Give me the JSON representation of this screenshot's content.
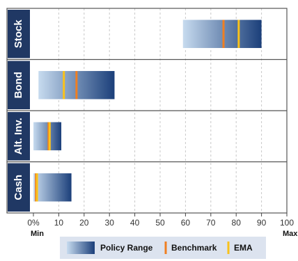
{
  "chart_data": {
    "type": "bar",
    "subtype": "horizontal floating range bars with markers",
    "categories": [
      "Stock",
      "Bond",
      "Alt. Inv.",
      "Cash"
    ],
    "ranges": [
      [
        59,
        90
      ],
      [
        2,
        32
      ],
      [
        0,
        11
      ],
      [
        0,
        15
      ]
    ],
    "benchmark": [
      75,
      17,
      6,
      1
    ],
    "ema": [
      81,
      12,
      6,
      1
    ],
    "xlim": [
      0,
      100
    ],
    "x_ticks": [
      "0%",
      "10",
      "20",
      "30",
      "40",
      "50",
      "60",
      "70",
      "80",
      "90",
      "100"
    ],
    "x_min_label": "Min",
    "x_max_label": "Max",
    "grid": "vertical dashed",
    "legend": {
      "placement": "bottom",
      "items": [
        {
          "label": "Policy Range",
          "swatch": "gradient"
        },
        {
          "label": "Benchmark",
          "swatch": "line",
          "color": "#f07f21"
        },
        {
          "label": "EMA",
          "swatch": "line",
          "color": "#f9c21b"
        }
      ]
    },
    "colors": {
      "range_light": "#c7dbef",
      "range_dark": "#1b3f7a",
      "category_band": "#203864",
      "benchmark": "#f07f21",
      "ema": "#f9c21b",
      "legend_bg": "#dce3ef"
    }
  }
}
